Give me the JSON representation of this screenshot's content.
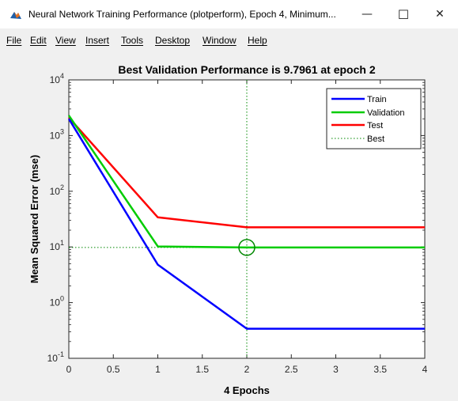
{
  "window": {
    "title": "Neural Network Training Performance (plotperform), Epoch 4, Minimum...",
    "minimize_glyph": "—",
    "maximize_glyph": "☐",
    "close_glyph": "✕",
    "icon": "matlab-icon"
  },
  "menu": {
    "items": [
      "File",
      "Edit",
      "View",
      "Insert",
      "Tools",
      "Desktop",
      "Window",
      "Help"
    ]
  },
  "colors": {
    "train": "#0000ff",
    "validation": "#00cc00",
    "test": "#ff0000",
    "best": "#008800"
  },
  "chart_data": {
    "type": "line",
    "title": "Best Validation Performance is 9.7961 at epoch 2",
    "xlabel": "4 Epochs",
    "ylabel": "Mean Squared Error  (mse)",
    "xlim": [
      0,
      4
    ],
    "ylim": [
      0.1,
      10000
    ],
    "yscale": "log",
    "xticks": [
      "0",
      "0.5",
      "1",
      "1.5",
      "2",
      "2.5",
      "3",
      "3.5",
      "4"
    ],
    "xtick_values": [
      0,
      0.5,
      1,
      1.5,
      2,
      2.5,
      3,
      3.5,
      4
    ],
    "ytick_exponents": [
      "4",
      "3",
      "2",
      "1",
      "0",
      "-1"
    ],
    "grid": false,
    "legend_position": "top-right",
    "x": [
      0,
      1,
      2,
      3,
      4
    ],
    "series": [
      {
        "name": "Train",
        "values": [
          2000,
          4.8,
          0.34,
          0.34,
          0.34
        ]
      },
      {
        "name": "Validation",
        "values": [
          2300,
          10.2,
          9.7961,
          9.7961,
          9.7961
        ]
      },
      {
        "name": "Test",
        "values": [
          2100,
          34,
          22.5,
          22.5,
          22.5
        ]
      }
    ],
    "best": {
      "name": "Best",
      "epoch": 2,
      "value": 9.7961
    }
  }
}
